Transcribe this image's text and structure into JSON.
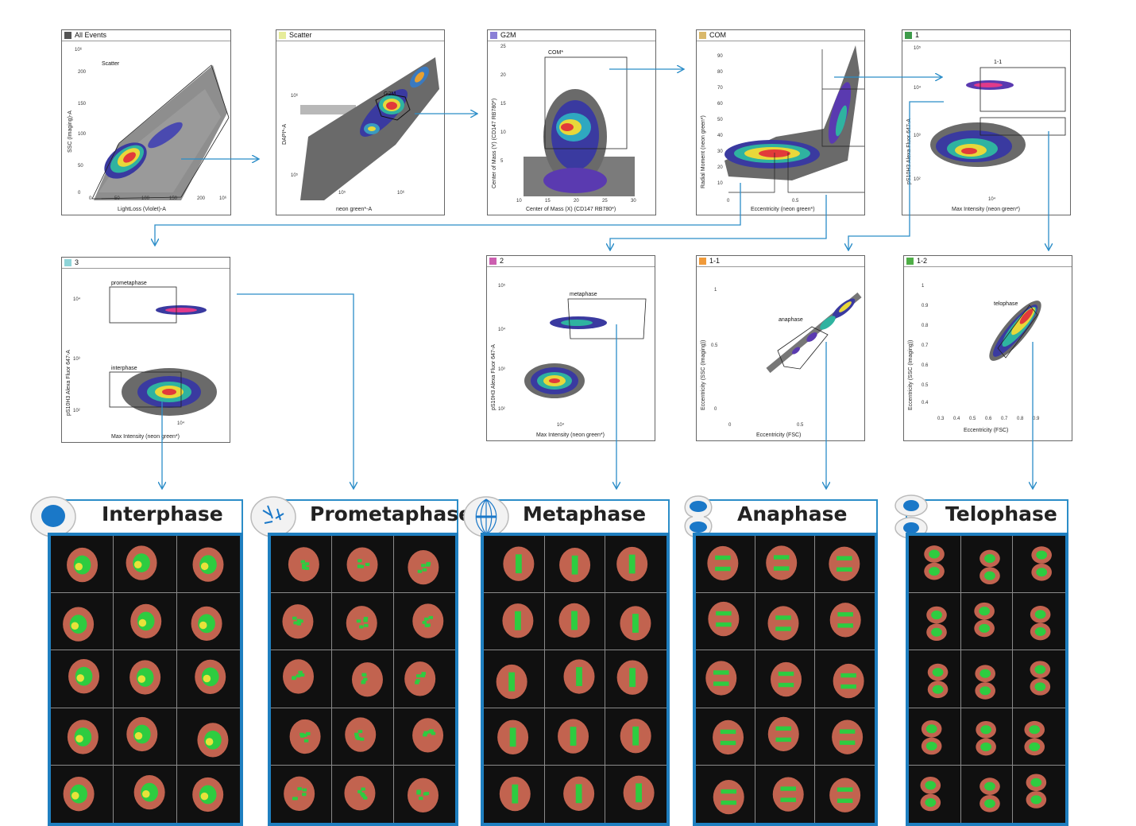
{
  "plots": [
    {
      "id": "all-events",
      "header": "All Events",
      "color": "#555555",
      "xlabel": "LightLoss (Violet)-A",
      "ylabel": "SSC (Imaging)-A",
      "gate": "Scatter",
      "xticks": [
        "0",
        "50",
        "100",
        "150",
        "200"
      ],
      "yticks": [
        "200",
        "150",
        "100",
        "50",
        "0"
      ],
      "xmax": "10⁶",
      "ymax": "10⁶"
    },
    {
      "id": "scatter",
      "header": "Scatter",
      "color": "#e6ec9a",
      "xlabel": "neon green*-A",
      "ylabel": "DAPI*-A",
      "gate": "G2M",
      "xticks": [
        "10⁵",
        "10⁶"
      ],
      "yticks": [
        "10⁶",
        "10⁵"
      ]
    },
    {
      "id": "g2m",
      "header": "G2M",
      "color": "#8a7fd6",
      "xlabel": "Center of Mass (X) (CD147 RB780*)",
      "ylabel": "Center of Mass (Y) (CD147 RB780*)",
      "gate": "COM*",
      "xticks": [
        "10",
        "15",
        "20",
        "25",
        "30"
      ],
      "yticks": [
        "25",
        "20",
        "15",
        "10",
        "5"
      ]
    },
    {
      "id": "com",
      "header": "COM",
      "color": "#d9b86a",
      "xlabel": "Eccentricity (neon green*)",
      "ylabel": "Radial Moment (neon green*)",
      "gate": "",
      "xticks": [
        "0",
        "0.5"
      ],
      "yticks": [
        "90",
        "80",
        "70",
        "60",
        "50",
        "40",
        "30",
        "20",
        "10"
      ]
    },
    {
      "id": "gate-1",
      "header": "1",
      "color": "#3e9b4a",
      "xlabel": "Max Intensity (neon green*)",
      "ylabel": "pS10H3 Alexa Fluor 647-A",
      "gate": "1-1",
      "xticks": [
        "10⁴"
      ],
      "yticks": [
        "10⁵",
        "10⁴",
        "10³",
        "10²"
      ]
    },
    {
      "id": "gate-3",
      "header": "3",
      "color": "#8fd4d8",
      "xlabel": "Max Intensity (neon green*)",
      "ylabel": "pS10H3 Alexa Fluor 647-A",
      "gate": "prometaphase",
      "gate2": "interphase",
      "xticks": [
        "10⁴"
      ],
      "yticks": [
        "10⁴",
        "10³",
        "10²"
      ]
    },
    {
      "id": "gate-2",
      "header": "2",
      "color": "#cc5fb0",
      "xlabel": "Max Intensity (neon green*)",
      "ylabel": "pS10H3 Alexa Fluor 647-A",
      "gate": "metaphase",
      "xticks": [
        "10⁴"
      ],
      "yticks": [
        "10⁵",
        "10⁴",
        "10³",
        "10²"
      ]
    },
    {
      "id": "gate-1-1",
      "header": "1-1",
      "color": "#f09a3a",
      "xlabel": "Eccentricity (FSC)",
      "ylabel": "Eccentricity (SSC (Imaging))",
      "gate": "anaphase",
      "xticks": [
        "0",
        "0.5"
      ],
      "yticks": [
        "1",
        "0.5",
        "0"
      ]
    },
    {
      "id": "gate-1-2",
      "header": "1-2",
      "color": "#4fae47",
      "xlabel": "Eccentricity (FSC)",
      "ylabel": "Eccentricity (SSC (Imaging))",
      "gate": "telophase",
      "xticks": [
        "0.3",
        "0.4",
        "0.5",
        "0.6",
        "0.7",
        "0.8",
        "0.9"
      ],
      "yticks": [
        "1",
        "0.9",
        "0.8",
        "0.7",
        "0.6",
        "0.5",
        "0.4"
      ]
    }
  ],
  "phases": [
    {
      "title": "Interphase",
      "icon": "interphase-cell-icon"
    },
    {
      "title": "Prometaphase",
      "icon": "prometaphase-cell-icon"
    },
    {
      "title": "Metaphase",
      "icon": "metaphase-cell-icon"
    },
    {
      "title": "Anaphase",
      "icon": "anaphase-cell-icon"
    },
    {
      "title": "Telophase",
      "icon": "telophase-cell-icon"
    }
  ],
  "colors": {
    "arrow": "#2b8dc8",
    "grid_border": "#1f7fc0",
    "cell_red": "#e2725b",
    "cell_green": "#2ecc40",
    "cell_yellow": "#e8e23a"
  }
}
